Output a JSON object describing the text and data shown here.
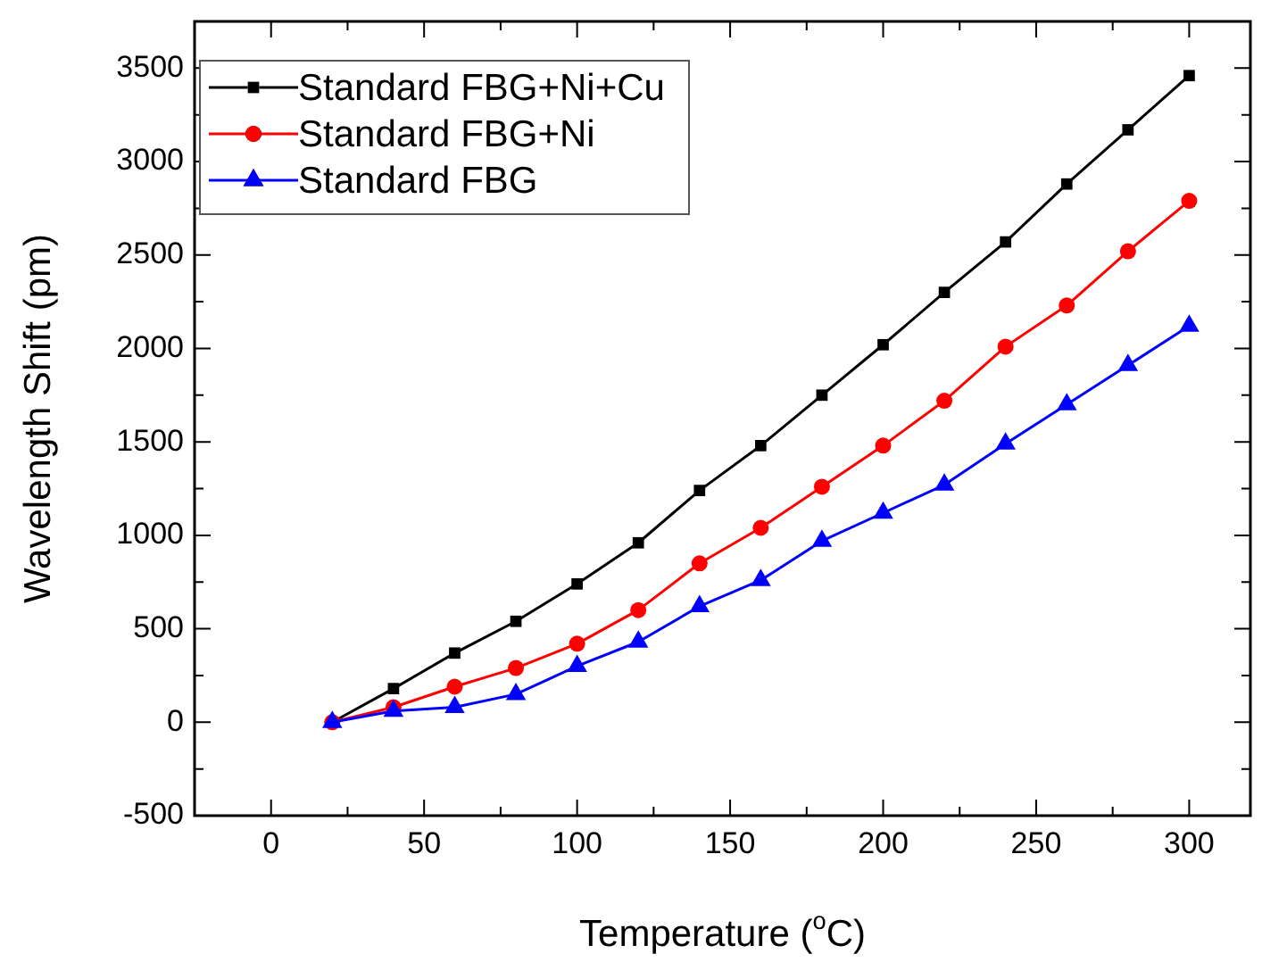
{
  "chart_data": {
    "type": "line",
    "xlabel": "Temperature ($^{o}$C)",
    "ylabel": "Wavelength Shift (pm)",
    "x": [
      20,
      40,
      60,
      80,
      100,
      120,
      140,
      160,
      180,
      200,
      220,
      240,
      260,
      280,
      300
    ],
    "series": [
      {
        "name": "Standard FBG+Ni+Cu",
        "color": "#000000",
        "marker": "square",
        "values": [
          0,
          180,
          370,
          540,
          740,
          960,
          1240,
          1480,
          1750,
          2020,
          2300,
          2570,
          2880,
          3170,
          3460
        ]
      },
      {
        "name": "Standard FBG+Ni",
        "color": "#ff0000",
        "marker": "circle",
        "values": [
          0,
          80,
          190,
          290,
          420,
          600,
          850,
          1040,
          1260,
          1480,
          1720,
          2010,
          2230,
          2520,
          2790
        ]
      },
      {
        "name": "Standard FBG",
        "color": "#0000ff",
        "marker": "triangle",
        "values": [
          0,
          60,
          80,
          150,
          300,
          430,
          620,
          760,
          970,
          1120,
          1270,
          1490,
          1700,
          1910,
          2120
        ]
      }
    ],
    "xlim": [
      -25,
      320
    ],
    "xticks": [
      0,
      {
        "value": 25,
        "label": null
      },
      50,
      {
        "value": 75,
        "label": null
      },
      100,
      {
        "value": 125,
        "label": null
      },
      150,
      {
        "value": 175,
        "label": null
      },
      200,
      {
        "value": 225,
        "label": null
      },
      250,
      {
        "value": 275,
        "label": null
      },
      300
    ],
    "ylim": [
      -500,
      3750
    ],
    "yticks": [
      -500,
      {
        "value": -250,
        "label": null
      },
      0,
      {
        "value": 250,
        "label": null
      },
      500,
      {
        "value": 750,
        "label": null
      },
      1000,
      {
        "value": 1250,
        "label": null
      },
      1500,
      {
        "value": 1750,
        "label": null
      },
      2000,
      {
        "value": 2250,
        "label": null
      },
      2500,
      {
        "value": 2750,
        "label": null
      },
      3000,
      {
        "value": 3250,
        "label": null
      },
      3500
    ],
    "grid": false,
    "legend": "top left",
    "line_style": "solid"
  }
}
